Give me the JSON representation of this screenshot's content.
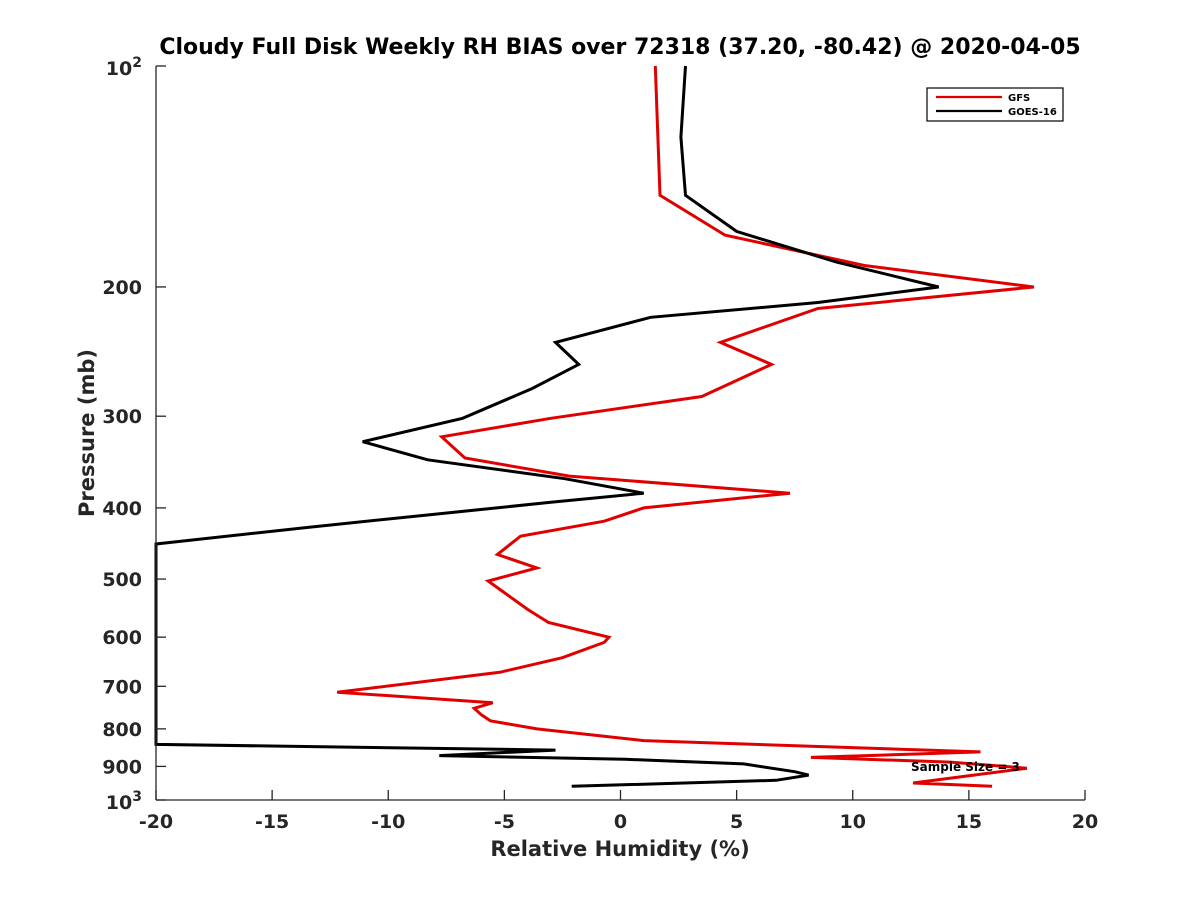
{
  "chart_data": {
    "type": "line",
    "title": "Cloudy Full Disk Weekly RH BIAS over 72318 (37.20, -80.42) @ 2020-04-05",
    "xlabel": "Relative Humidity (%)",
    "ylabel": "Pressure (mb)",
    "xlim": [
      -20,
      20
    ],
    "ylim": [
      100,
      1000
    ],
    "yscale": "log",
    "y_reversed": true,
    "grid": false,
    "legend_position": "top-right",
    "x_ticks": [
      -20,
      -15,
      -10,
      -5,
      0,
      5,
      10,
      15,
      20
    ],
    "y_ticks": [
      200,
      300,
      400,
      500,
      600,
      700,
      800,
      900
    ],
    "y_tick_edge_labels": [
      {
        "value": 100,
        "base": "10",
        "exp": "2"
      },
      {
        "value": 1000,
        "base": "10",
        "exp": "3"
      }
    ],
    "annotation": "Sample Size = 3",
    "series": [
      {
        "name": "GFS",
        "color": "#e00000",
        "points": [
          [
            1.5,
            100
          ],
          [
            1.7,
            150
          ],
          [
            4.5,
            170
          ],
          [
            10.5,
            187
          ],
          [
            17.8,
            200
          ],
          [
            8.5,
            214
          ],
          [
            4.3,
            238
          ],
          [
            6.5,
            255
          ],
          [
            3.5,
            282
          ],
          [
            -3.0,
            302
          ],
          [
            -7.7,
            320
          ],
          [
            -6.7,
            342
          ],
          [
            -2.2,
            362
          ],
          [
            7.3,
            382
          ],
          [
            1.0,
            400
          ],
          [
            -0.7,
            417
          ],
          [
            -4.3,
            437
          ],
          [
            -5.3,
            463
          ],
          [
            -3.6,
            483
          ],
          [
            -5.7,
            503
          ],
          [
            -4.0,
            550
          ],
          [
            -3.1,
            573
          ],
          [
            -0.5,
            600
          ],
          [
            -0.7,
            610
          ],
          [
            -2.5,
            640
          ],
          [
            -5.2,
            670
          ],
          [
            -12.2,
            713
          ],
          [
            -5.5,
            737
          ],
          [
            -6.3,
            750
          ],
          [
            -6.0,
            765
          ],
          [
            -5.6,
            780
          ],
          [
            -3.6,
            800
          ],
          [
            1.0,
            830
          ],
          [
            15.5,
            860
          ],
          [
            8.2,
            875
          ],
          [
            14.2,
            888
          ],
          [
            17.5,
            905
          ],
          [
            12.6,
            948
          ],
          [
            16.0,
            958
          ]
        ]
      },
      {
        "name": "GOES-16",
        "color": "#000000",
        "points": [
          [
            2.8,
            100
          ],
          [
            2.6,
            125
          ],
          [
            2.8,
            150
          ],
          [
            5.0,
            168
          ],
          [
            9.3,
            185
          ],
          [
            13.7,
            200
          ],
          [
            8.5,
            210
          ],
          [
            1.3,
            220
          ],
          [
            -2.8,
            238
          ],
          [
            -1.8,
            255
          ],
          [
            -3.8,
            275
          ],
          [
            -6.8,
            302
          ],
          [
            -11.1,
            325
          ],
          [
            -8.3,
            344
          ],
          [
            -2.4,
            365
          ],
          [
            1.0,
            382
          ],
          [
            -3.0,
            393
          ],
          [
            -8.0,
            408
          ],
          [
            -13.4,
            425
          ],
          [
            -20.0,
            448
          ],
          [
            -20.0,
            840
          ],
          [
            -2.8,
            855
          ],
          [
            -7.8,
            870
          ],
          [
            0.2,
            880
          ],
          [
            5.3,
            893
          ],
          [
            7.5,
            915
          ],
          [
            8.1,
            925
          ],
          [
            6.7,
            940
          ],
          [
            -2.1,
            958
          ]
        ]
      }
    ]
  }
}
